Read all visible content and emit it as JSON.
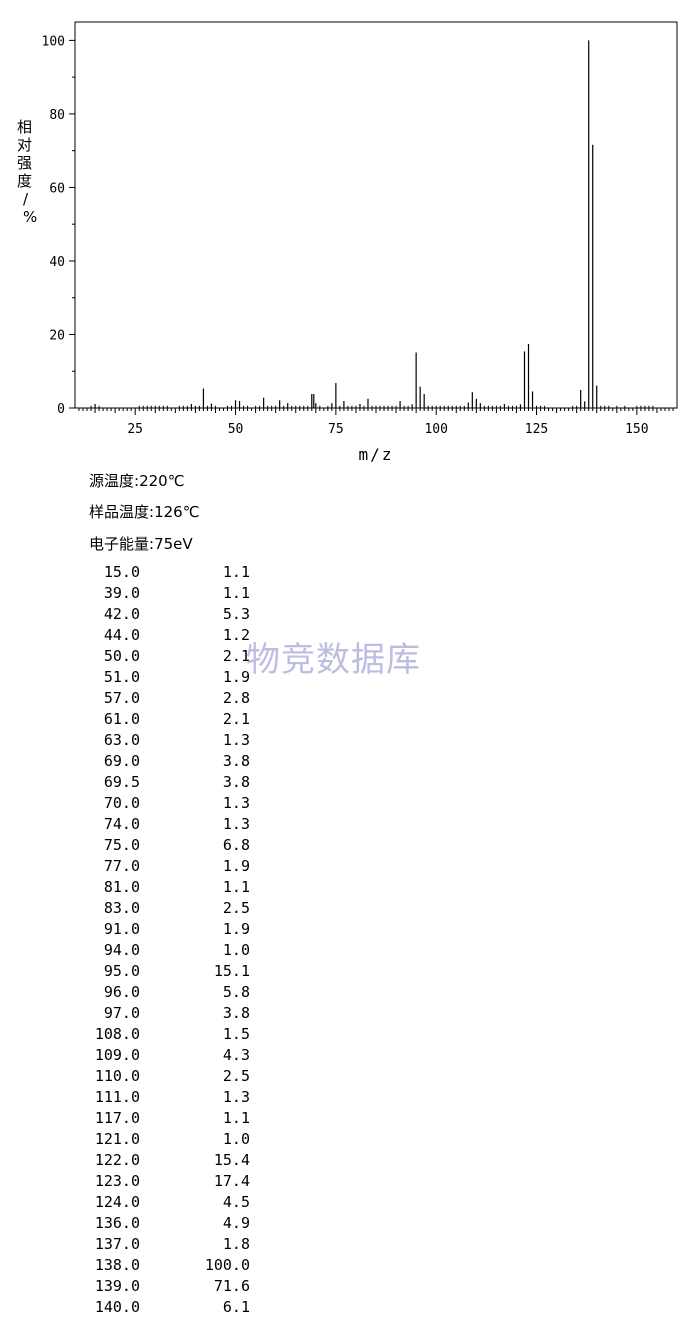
{
  "chart_data": {
    "type": "bar",
    "xlabel": "m/z",
    "ylabel": "相对强度/%",
    "xlim": [
      10,
      160
    ],
    "ylim": [
      0,
      105
    ],
    "x_ticks": [
      25,
      50,
      75,
      100,
      125,
      150
    ],
    "y_ticks": [
      0,
      20,
      40,
      60,
      80,
      100
    ],
    "labeled_peaks": [
      {
        "x": 15.0,
        "y": 1.1
      },
      {
        "x": 39.0,
        "y": 1.1
      },
      {
        "x": 42.0,
        "y": 5.3
      },
      {
        "x": 44.0,
        "y": 1.2
      },
      {
        "x": 50.0,
        "y": 2.1
      },
      {
        "x": 51.0,
        "y": 1.9
      },
      {
        "x": 57.0,
        "y": 2.8
      },
      {
        "x": 61.0,
        "y": 2.1
      },
      {
        "x": 63.0,
        "y": 1.3
      },
      {
        "x": 69.0,
        "y": 3.8
      },
      {
        "x": 69.5,
        "y": 3.8
      },
      {
        "x": 70.0,
        "y": 1.3
      },
      {
        "x": 74.0,
        "y": 1.3
      },
      {
        "x": 75.0,
        "y": 6.8
      },
      {
        "x": 77.0,
        "y": 1.9
      },
      {
        "x": 81.0,
        "y": 1.1
      },
      {
        "x": 83.0,
        "y": 2.5
      },
      {
        "x": 91.0,
        "y": 1.9
      },
      {
        "x": 94.0,
        "y": 1.0
      },
      {
        "x": 95.0,
        "y": 15.1
      },
      {
        "x": 96.0,
        "y": 5.8
      },
      {
        "x": 97.0,
        "y": 3.8
      },
      {
        "x": 108.0,
        "y": 1.5
      },
      {
        "x": 109.0,
        "y": 4.3
      },
      {
        "x": 110.0,
        "y": 2.5
      },
      {
        "x": 111.0,
        "y": 1.3
      },
      {
        "x": 117.0,
        "y": 1.1
      },
      {
        "x": 121.0,
        "y": 1.0
      },
      {
        "x": 122.0,
        "y": 15.4
      },
      {
        "x": 123.0,
        "y": 17.4
      },
      {
        "x": 124.0,
        "y": 4.5
      },
      {
        "x": 136.0,
        "y": 4.9
      },
      {
        "x": 137.0,
        "y": 1.8
      },
      {
        "x": 138.0,
        "y": 100.0
      },
      {
        "x": 139.0,
        "y": 71.6
      },
      {
        "x": 140.0,
        "y": 6.1
      }
    ],
    "minor_peaks_x": [
      14,
      16,
      26,
      27,
      28,
      29,
      30,
      31,
      32,
      33,
      36,
      37,
      38,
      40,
      41,
      43,
      45,
      48,
      49,
      52,
      53,
      55,
      56,
      58,
      59,
      60,
      62,
      64,
      65,
      66,
      67,
      68,
      71,
      73,
      76,
      78,
      79,
      80,
      82,
      84,
      85,
      86,
      87,
      88,
      89,
      90,
      92,
      93,
      98,
      99,
      100,
      101,
      102,
      103,
      104,
      105,
      106,
      107,
      112,
      113,
      114,
      115,
      116,
      118,
      119,
      120,
      125,
      126,
      127,
      134,
      135,
      141,
      142,
      143,
      145,
      147,
      150,
      151,
      152,
      153,
      154
    ],
    "minor_peak_value": 0.6,
    "grid": false,
    "bar_color": "#000000"
  },
  "conditions": [
    {
      "label": "源温度:",
      "value": "220℃"
    },
    {
      "label": "样品温度:",
      "value": "126℃"
    },
    {
      "label": "电子能量:",
      "value": "75eV"
    }
  ],
  "table_rows": [
    [
      "15.0",
      "1.1"
    ],
    [
      "39.0",
      "1.1"
    ],
    [
      "42.0",
      "5.3"
    ],
    [
      "44.0",
      "1.2"
    ],
    [
      "50.0",
      "2.1"
    ],
    [
      "51.0",
      "1.9"
    ],
    [
      "57.0",
      "2.8"
    ],
    [
      "61.0",
      "2.1"
    ],
    [
      "63.0",
      "1.3"
    ],
    [
      "69.0",
      "3.8"
    ],
    [
      "69.5",
      "3.8"
    ],
    [
      "70.0",
      "1.3"
    ],
    [
      "74.0",
      "1.3"
    ],
    [
      "75.0",
      "6.8"
    ],
    [
      "77.0",
      "1.9"
    ],
    [
      "81.0",
      "1.1"
    ],
    [
      "83.0",
      "2.5"
    ],
    [
      "91.0",
      "1.9"
    ],
    [
      "94.0",
      "1.0"
    ],
    [
      "95.0",
      "15.1"
    ],
    [
      "96.0",
      "5.8"
    ],
    [
      "97.0",
      "3.8"
    ],
    [
      "108.0",
      "1.5"
    ],
    [
      "109.0",
      "4.3"
    ],
    [
      "110.0",
      "2.5"
    ],
    [
      "111.0",
      "1.3"
    ],
    [
      "117.0",
      "1.1"
    ],
    [
      "121.0",
      "1.0"
    ],
    [
      "122.0",
      "15.4"
    ],
    [
      "123.0",
      "17.4"
    ],
    [
      "124.0",
      "4.5"
    ],
    [
      "136.0",
      "4.9"
    ],
    [
      "137.0",
      "1.8"
    ],
    [
      "138.0",
      "100.0"
    ],
    [
      "139.0",
      "71.6"
    ],
    [
      "140.0",
      "6.1"
    ]
  ],
  "watermark": "物竞数据库"
}
